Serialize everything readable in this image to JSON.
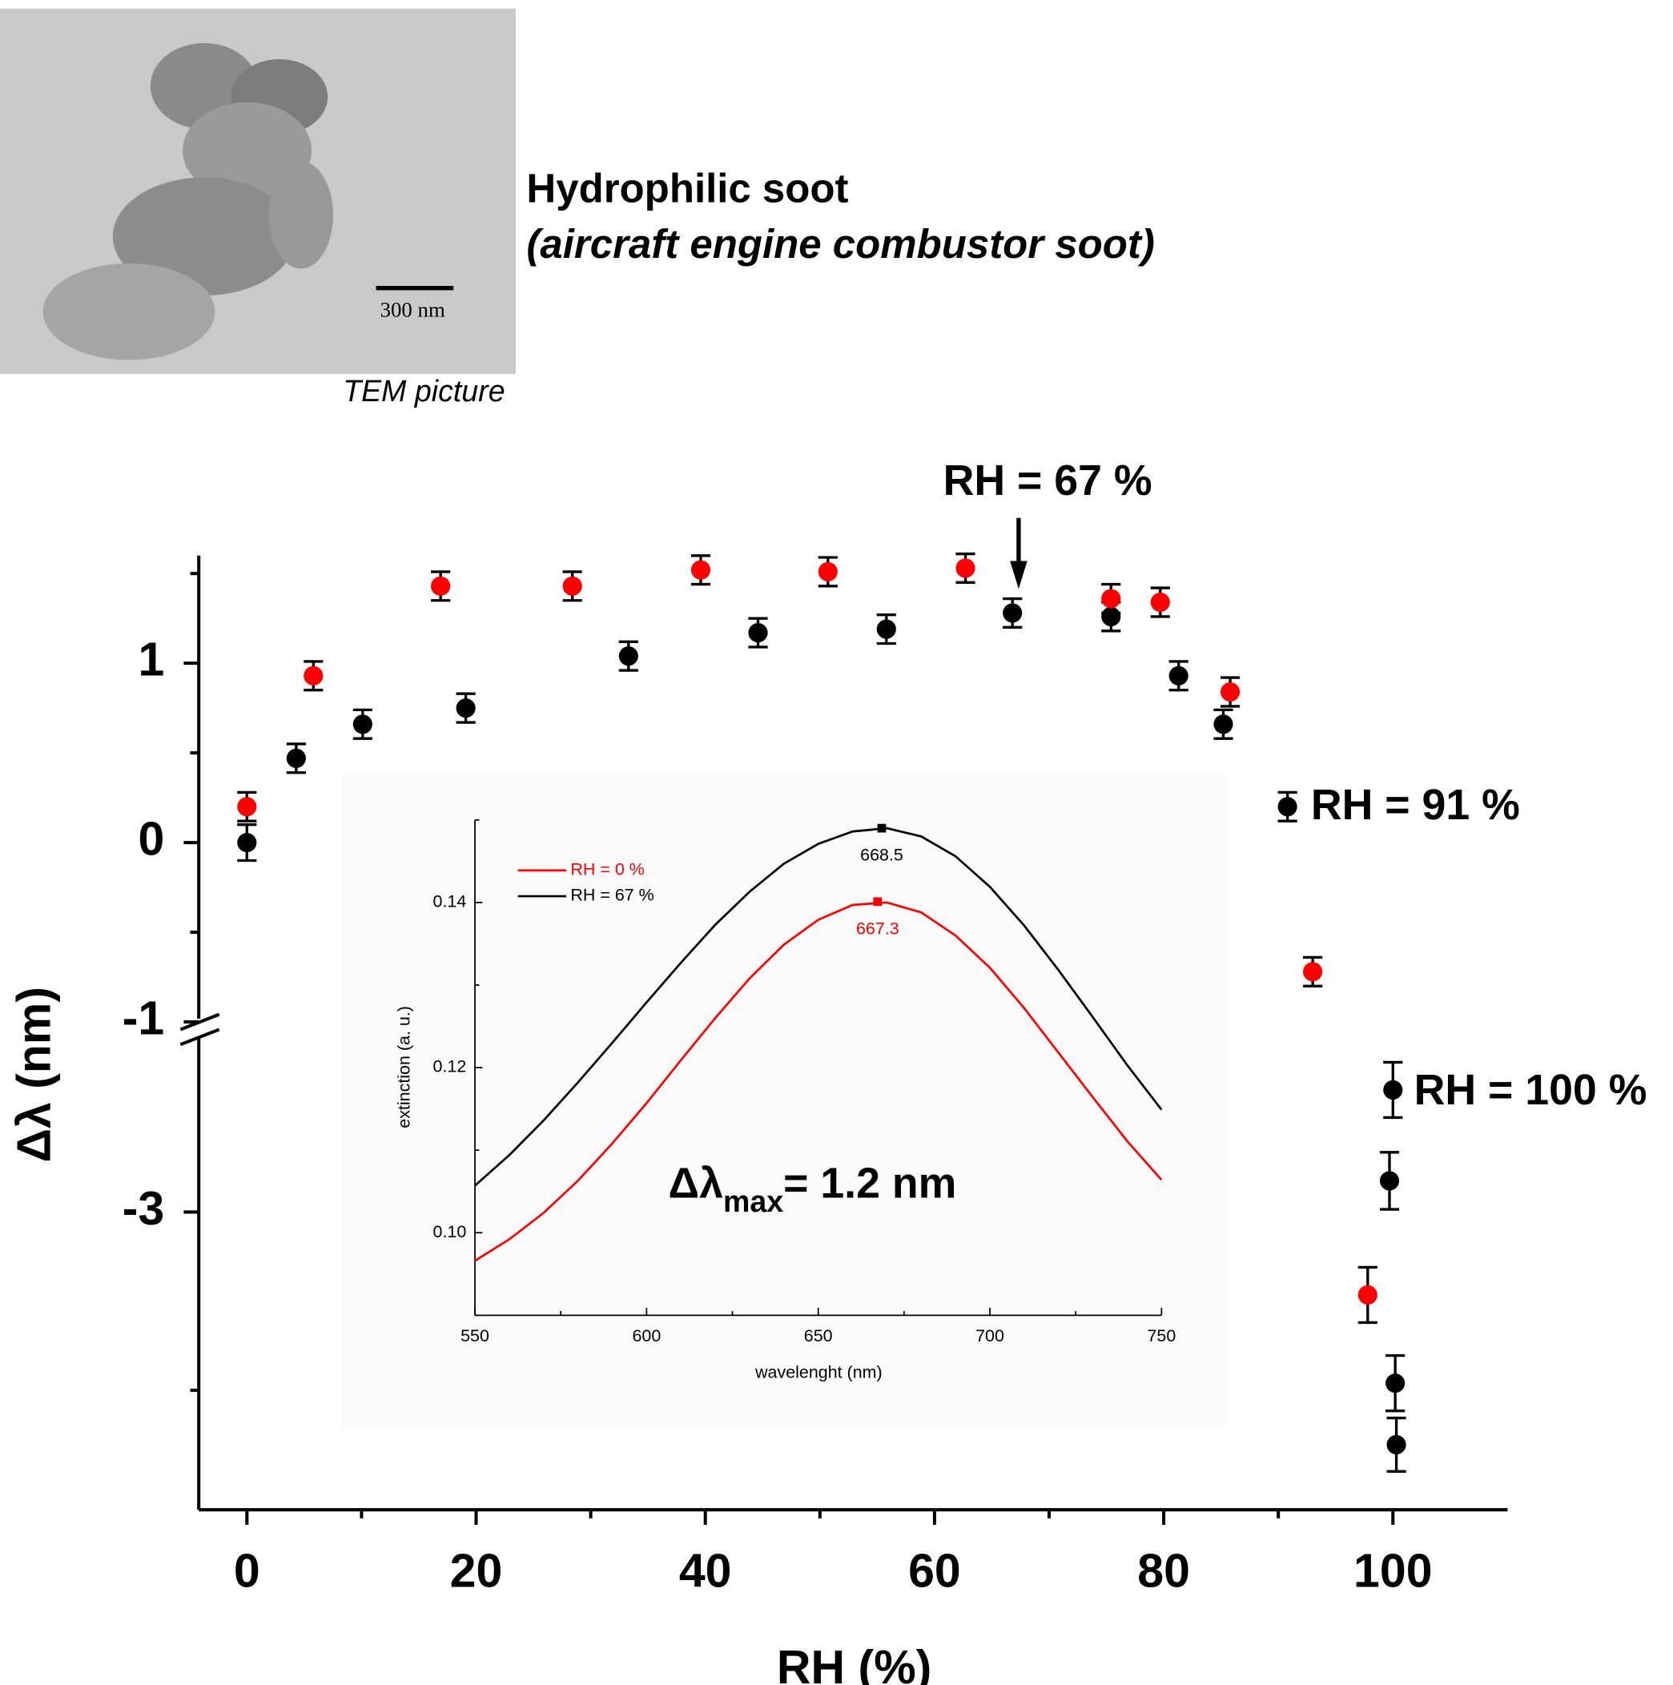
{
  "header": {
    "title": "Hydrophilic soot",
    "subtitle": "(aircraft engine combustor soot)",
    "image_caption": "TEM picture",
    "scale_bar": "300 nm"
  },
  "chart_data": [
    {
      "type": "scatter",
      "x_label": "RH (%)",
      "y_label": "Δλ (nm)",
      "xlim": [
        -4.2,
        110
      ],
      "xticks": [
        0,
        20,
        40,
        60,
        80,
        100
      ],
      "xminorticks": [
        10,
        30,
        50,
        70,
        90
      ],
      "y_segments": [
        {
          "ylim": [
            -1,
            1.6
          ],
          "yticks": [
            -1,
            0,
            1
          ],
          "yminorticks": [
            -0.5,
            0.5,
            1.5
          ]
        },
        {
          "ylim": [
            -6.34,
            -1
          ],
          "yticks": [
            -3
          ],
          "yminorticks": [
            -5
          ]
        }
      ],
      "axis_break": true,
      "series": [
        {
          "color": "#000000",
          "x": [
            0,
            4.3,
            10.1,
            19.1,
            33.3,
            44.6,
            55.8,
            66.8,
            75.4,
            81.3,
            85.2,
            90.8,
            100,
            99.7,
            100.2,
            100.3
          ],
          "values": [
            0,
            0.47,
            0.66,
            0.75,
            1.04,
            1.17,
            1.19,
            1.28,
            1.26,
            0.93,
            0.66,
            0.2,
            -1.63,
            -2.65,
            -4.92,
            -5.61
          ],
          "errors": [
            0.1,
            0.08,
            0.08,
            0.08,
            0.08,
            0.08,
            0.08,
            0.08,
            0.08,
            0.08,
            0.08,
            0.08,
            0.31,
            0.32,
            0.31,
            0.3
          ]
        },
        {
          "color": "#ff0000",
          "x": [
            0,
            5.8,
            16.9,
            28.4,
            39.6,
            50.7,
            62.7,
            75.4,
            79.7,
            85.8,
            93.0,
            97.8
          ],
          "values": [
            0.2,
            0.93,
            1.43,
            1.43,
            1.52,
            1.51,
            1.53,
            1.36,
            1.34,
            0.84,
            -0.72,
            -3.93
          ],
          "errors": [
            0.08,
            0.08,
            0.08,
            0.08,
            0.08,
            0.08,
            0.08,
            0.08,
            0.08,
            0.08,
            0.08,
            0.31
          ]
        }
      ],
      "annotations": [
        "RH = 67 %",
        "RH = 91 %",
        "RH = 100 %"
      ]
    },
    {
      "type": "line",
      "x_label": "wavelenght (nm)",
      "y_label": "extinction (a. u.)",
      "xlim": [
        550,
        750
      ],
      "ylim": [
        0.09,
        0.15
      ],
      "xticks": [
        550,
        600,
        650,
        700,
        750
      ],
      "xminorticks": [
        575,
        625,
        675,
        725
      ],
      "yticks": [
        {
          "value": 0.1,
          "label": "0.10"
        },
        0.12,
        0.14
      ],
      "yminorticks": [
        0.09,
        0.11,
        0.13,
        0.15
      ],
      "legend_position": "upper left",
      "x": [
        550,
        560,
        570,
        580,
        590,
        600,
        610,
        620,
        630,
        640,
        650,
        660,
        670,
        680,
        690,
        700,
        710,
        720,
        730,
        740,
        750
      ],
      "series": [
        {
          "name": "RH = 0 %",
          "color": "#ff0000",
          "values": [
            0.0966,
            0.0992,
            0.1024,
            0.1063,
            0.1108,
            0.1157,
            0.1209,
            0.126,
            0.1308,
            0.1349,
            0.1379,
            0.1397,
            0.14,
            0.1388,
            0.136,
            0.1321,
            0.1272,
            0.1218,
            0.1164,
            0.1111,
            0.1064
          ],
          "peak_x": 667.3,
          "peak_value": 0.1401
        },
        {
          "name": "RH = 67 %",
          "color": "#000000",
          "values": [
            0.1057,
            0.1094,
            0.1136,
            0.1182,
            0.123,
            0.1279,
            0.1327,
            0.1373,
            0.1413,
            0.1447,
            0.1471,
            0.1486,
            0.149,
            0.148,
            0.1456,
            0.1419,
            0.1372,
            0.1318,
            0.1261,
            0.1203,
            0.1149
          ],
          "peak_x": 668.5,
          "peak_value": 0.149
        }
      ],
      "annotation": [
        "Δλ",
        "max",
        "= 1.2 nm"
      ]
    }
  ]
}
